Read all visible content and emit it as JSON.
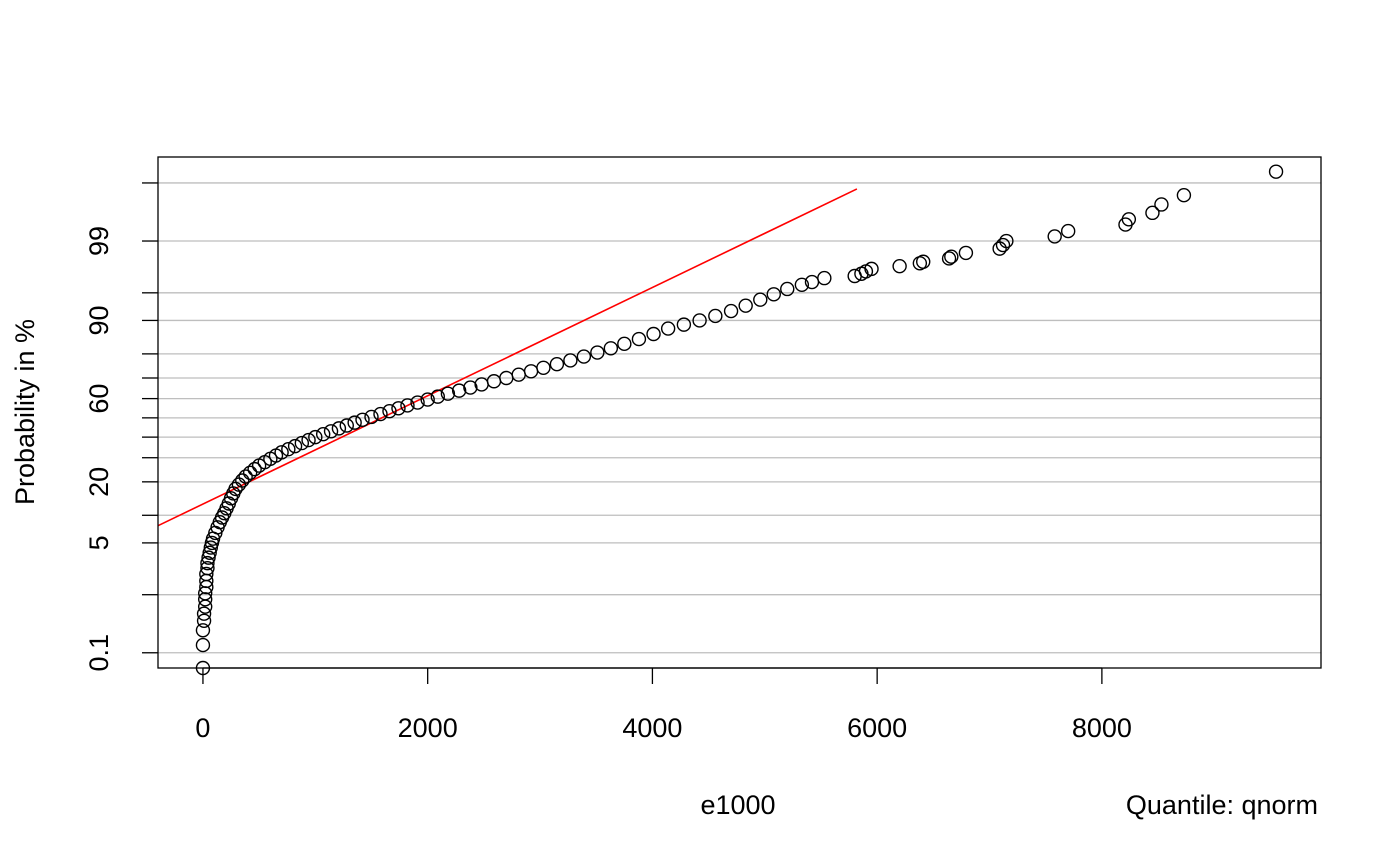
{
  "chart_data": {
    "type": "scatter",
    "title": "",
    "xlabel": "e1000",
    "ylabel": "Probability in %",
    "annotation": "Quantile: qnorm",
    "xlim": [
      -400,
      9950
    ],
    "ylim_probability_percent": [
      0.05,
      99.97
    ],
    "y_scale": "normal-quantile (probability paper)",
    "x_ticks": [
      0,
      2000,
      4000,
      6000,
      8000
    ],
    "x_tick_labels": [
      "0",
      "2000",
      "4000",
      "6000",
      "8000"
    ],
    "y_ticks_percent": [
      0.1,
      1,
      5,
      10,
      20,
      30,
      40,
      50,
      60,
      70,
      80,
      90,
      95,
      99,
      99.9
    ],
    "y_tick_labels": [
      "0.1",
      "",
      "5",
      "",
      "20",
      "",
      "",
      "",
      "60",
      "",
      "",
      "90",
      "",
      "99",
      ""
    ],
    "grid": "horizontal at y ticks",
    "colors": {
      "points": "#000000",
      "fit_line": "#ff0000",
      "grid": "#bebebe",
      "frame": "#000000"
    },
    "fit_line": {
      "color": "#ff0000",
      "points": [
        [
          -400,
          7.8
        ],
        [
          5820,
          99.87
        ]
      ]
    },
    "series": [
      {
        "points": [
          [
            0,
            0.05
          ],
          [
            0,
            0.14
          ],
          [
            0,
            0.26
          ],
          [
            10,
            0.38
          ],
          [
            10,
            0.5
          ],
          [
            20,
            0.65
          ],
          [
            20,
            0.85
          ],
          [
            20,
            1.05
          ],
          [
            30,
            1.3
          ],
          [
            30,
            1.6
          ],
          [
            30,
            2.0
          ],
          [
            40,
            2.4
          ],
          [
            40,
            2.8
          ],
          [
            50,
            3.3
          ],
          [
            60,
            3.8
          ],
          [
            70,
            4.4
          ],
          [
            80,
            5.0
          ],
          [
            90,
            5.6
          ],
          [
            110,
            6.5
          ],
          [
            130,
            7.5
          ],
          [
            150,
            8.5
          ],
          [
            170,
            9.5
          ],
          [
            190,
            10.5
          ],
          [
            210,
            11.7
          ],
          [
            230,
            13.0
          ],
          [
            250,
            14.5
          ],
          [
            270,
            16.0
          ],
          [
            290,
            17.5
          ],
          [
            320,
            19.0
          ],
          [
            350,
            20.5
          ],
          [
            380,
            22.0
          ],
          [
            420,
            23.5
          ],
          [
            460,
            25.0
          ],
          [
            500,
            26.5
          ],
          [
            550,
            28.0
          ],
          [
            600,
            29.5
          ],
          [
            650,
            31.0
          ],
          [
            700,
            32.5
          ],
          [
            760,
            34.0
          ],
          [
            820,
            35.5
          ],
          [
            880,
            37.0
          ],
          [
            940,
            38.5
          ],
          [
            1000,
            40.0
          ],
          [
            1070,
            41.5
          ],
          [
            1140,
            43.0
          ],
          [
            1210,
            44.5
          ],
          [
            1280,
            46.0
          ],
          [
            1350,
            47.5
          ],
          [
            1420,
            49.0
          ],
          [
            1500,
            50.5
          ],
          [
            1580,
            52.0
          ],
          [
            1660,
            53.5
          ],
          [
            1740,
            55.0
          ],
          [
            1820,
            56.5
          ],
          [
            1910,
            58.0
          ],
          [
            2000,
            59.5
          ],
          [
            2090,
            61.0
          ],
          [
            2180,
            62.5
          ],
          [
            2280,
            64.0
          ],
          [
            2380,
            65.5
          ],
          [
            2480,
            67.0
          ],
          [
            2590,
            68.5
          ],
          [
            2700,
            70.0
          ],
          [
            2810,
            71.5
          ],
          [
            2920,
            73.0
          ],
          [
            3030,
            74.5
          ],
          [
            3150,
            76.0
          ],
          [
            3270,
            77.5
          ],
          [
            3390,
            79.0
          ],
          [
            3510,
            80.5
          ],
          [
            3630,
            82.0
          ],
          [
            3750,
            83.5
          ],
          [
            3880,
            85.0
          ],
          [
            4010,
            86.5
          ],
          [
            4140,
            88.0
          ],
          [
            4280,
            89.0
          ],
          [
            4420,
            90.0
          ],
          [
            4560,
            91.0
          ],
          [
            4700,
            92.0
          ],
          [
            4830,
            93.0
          ],
          [
            4960,
            94.0
          ],
          [
            5080,
            94.8
          ],
          [
            5200,
            95.5
          ],
          [
            5330,
            96.0
          ],
          [
            5420,
            96.3
          ],
          [
            5530,
            96.7
          ],
          [
            5800,
            96.9
          ],
          [
            5860,
            97.1
          ],
          [
            5900,
            97.3
          ],
          [
            5950,
            97.5
          ],
          [
            6200,
            97.7
          ],
          [
            6380,
            97.9
          ],
          [
            6410,
            98.0
          ],
          [
            6640,
            98.2
          ],
          [
            6660,
            98.3
          ],
          [
            6790,
            98.5
          ],
          [
            7090,
            98.7
          ],
          [
            7120,
            98.85
          ],
          [
            7150,
            99.0
          ],
          [
            7580,
            99.15
          ],
          [
            7700,
            99.3
          ],
          [
            8210,
            99.45
          ],
          [
            8240,
            99.55
          ],
          [
            8450,
            99.65
          ],
          [
            8530,
            99.75
          ],
          [
            8730,
            99.83
          ],
          [
            9550,
            99.94
          ]
        ]
      }
    ]
  }
}
